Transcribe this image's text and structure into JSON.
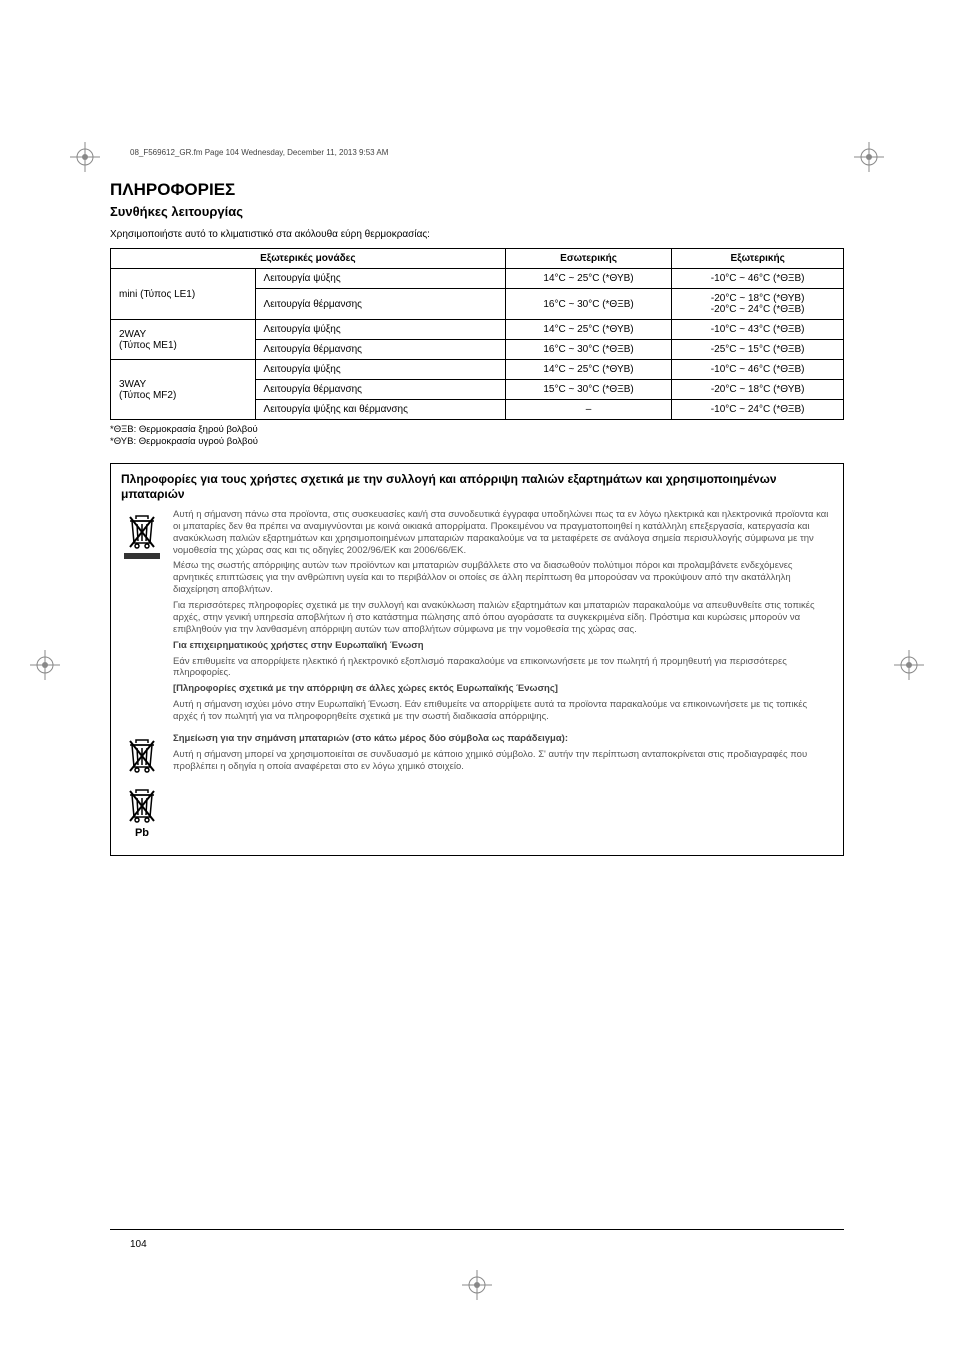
{
  "print": {
    "header_line": "08_F569612_GR.fm  Page 104  Wednesday, December 11, 2013  9:53 AM",
    "page_number": "104"
  },
  "section": {
    "title": "ΠΛΗΡΟΦΟΡΙΕΣ",
    "subtitle": "Συνθήκες λειτουργίας",
    "intro": "Χρησιμοποιήστε αυτό το κλιματιστικό στα ακόλουθα εύρη θερμοκρασίας:"
  },
  "table": {
    "headers": {
      "col1": "Εξωτερικές μονάδες",
      "col2": "Εσωτερικής",
      "col3": "Εξωτερικής"
    },
    "rows": [
      {
        "unit": "mini (Τύπος LE1)",
        "rowspan": 2,
        "mode": "Λειτουργία ψύξης",
        "indoor": "14°C ~ 25°C (*ΘΥΒ)",
        "outdoor": "-10°C ~ 46°C (*ΘΞΒ)"
      },
      {
        "mode": "Λειτουργία θέρμανσης",
        "indoor": "16°C ~ 30°C (*ΘΞΒ)",
        "outdoor": "-20°C ~ 18°C (*ΘΥΒ)\n-20°C ~ 24°C (*ΘΞΒ)"
      },
      {
        "unit": "2WAY\n(Τύπος ME1)",
        "rowspan": 2,
        "mode": "Λειτουργία ψύξης",
        "indoor": "14°C ~ 25°C (*ΘΥΒ)",
        "outdoor": "-10°C ~ 43°C (*ΘΞΒ)"
      },
      {
        "mode": "Λειτουργία θέρμανσης",
        "indoor": "16°C ~ 30°C (*ΘΞΒ)",
        "outdoor": "-25°C ~ 15°C (*ΘΞΒ)"
      },
      {
        "unit": "3WAY\n(Τύπος MF2)",
        "rowspan": 3,
        "mode": "Λειτουργία ψύξης",
        "indoor": "14°C ~ 25°C (*ΘΥΒ)",
        "outdoor": "-10°C ~ 46°C (*ΘΞΒ)"
      },
      {
        "mode": "Λειτουργία θέρμανσης",
        "indoor": "15°C ~ 30°C (*ΘΞΒ)",
        "outdoor": "-20°C ~ 18°C (*ΘΥΒ)"
      },
      {
        "mode": "Λειτουργία ψύξης και θέρμανσης",
        "indoor": "–",
        "outdoor": "-10°C ~ 24°C (*ΘΞΒ)"
      }
    ],
    "footnotes": {
      "n1": "*ΘΞΒ: Θερμοκρασία ξηρού βολβού",
      "n2": "*ΘΥΒ: Θερμοκρασία υγρού βολβού"
    }
  },
  "infobox": {
    "title": "Πληροφορίες για τους χρήστες σχετικά με την συλλογή και απόρριψη παλιών εξαρτημάτων και χρησιμοποιημένων μπαταριών",
    "block1": {
      "p1": "Αυτή η σήμανση πάνω στα προϊοντα, στις συσκευασίες και/ή στα συνοδευτικά έγγραφα υποδηλώνει πως τα εν λόγω ηλεκτρικά και ηλεκτρονικά προϊοντα και οι μπαταρίες δεν θα πρέπει να αναμιγνύονται με κοινά οικιακά απορρίματα. Προκειμένου να πραγματοποιηθεί η κατάλληλη επεξεργασία, κατεργασία και ανακύκλωση παλιών εξαρτημάτων και χρησιμοποιημένων μπαταριών παρακαλούμε να τα μεταφέρετε σε ανάλογα σημεία περισυλλογής σύμφωνα με την νομοθεσία της χώρας σας και τις οδηγίες 2002/96/ΕΚ και 2006/66/EΚ.",
      "p2": "Μέσω της σωστής απόρριψης αυτών των προϊόντων και μπαταριών συμβάλλετε στο να διασωθούν πολύτιμοι πόροι και προλαμβάνετε ενδεχόμενες αρνητικές επιπτώσεις για την ανθρώπινη υγεία και το περιβάλλον οι οποίες σε άλλη περίπτωση θα μπορούσαν να προκύψουν από την ακατάλληλη διαχείρηση αποβλήτων.",
      "p3": "Για περισσότερες πληροφορίες σχετικά με την συλλογή και ανακύκλωση παλιών εξαρτημάτων και μπαταριών παρακαλούμε να απευθυνθείτε στις τοπικές αρχές, στην γενική υπηρεσία αποβλήτων ή στο κατάστημα πώλησης από όπου αγοράσατε τα συγκεκριμένα είδη. Πρόστιμα και κυρώσεις μπορούν να επιβληθούν για την λανθασμένη απόρριψη αυτών των αποβλήτων σύμφωνα με την νομοθεσία της χώρας σας.",
      "h2": "Για επιχειρηματικούς χρήστες στην Ευρωπαϊκή Ένωση",
      "p4": "Εάν επιθυμείτε να απορρίψετε ηλεκτικό ή ηλεκτρονικό εξοπλισμό παρακαλούμε να επικοινωνήσετε με τον πωλητή ή προμηθευτή για περισσότερες πληροφορίες.",
      "h3": "[Πληροφορίες σχετικά με την απόρριψη σε άλλες χώρες εκτός Ευρωπαϊκής Ένωσης]",
      "p5": "Αυτή η σήμανση ισχύει μόνο στην Ευρωπαϊκή Ένωση. Εάν επιθυμείτε να απορρίψετε αυτά τα προϊοντα παρακαλούμε να επικοινωνήσετε με τις τοπικές αρχές ή τον πωλητή για να πληροφορηθείτε σχετικά με την σωστή διαδικασία απόρριψης."
    },
    "block2": {
      "h1": "Σημείωση για την σημάνση μπαταριών (στο κάτω μέρος δύο σύμβολα ως παράδειγμα):",
      "p1": "Αυτή η σήμανση μπορεί να χρησιμοποιείται σε συνδυασμό με κάποιο χημικό σύμβολο. Σ' αυτήν την περίπτωση ανταποκρίνεται στις προδιαγραφές που προβλέπει η οδηγία η οποία αναφέρεται στο εν λόγω χημικό στοιχείο."
    },
    "pb_label": "Pb"
  }
}
